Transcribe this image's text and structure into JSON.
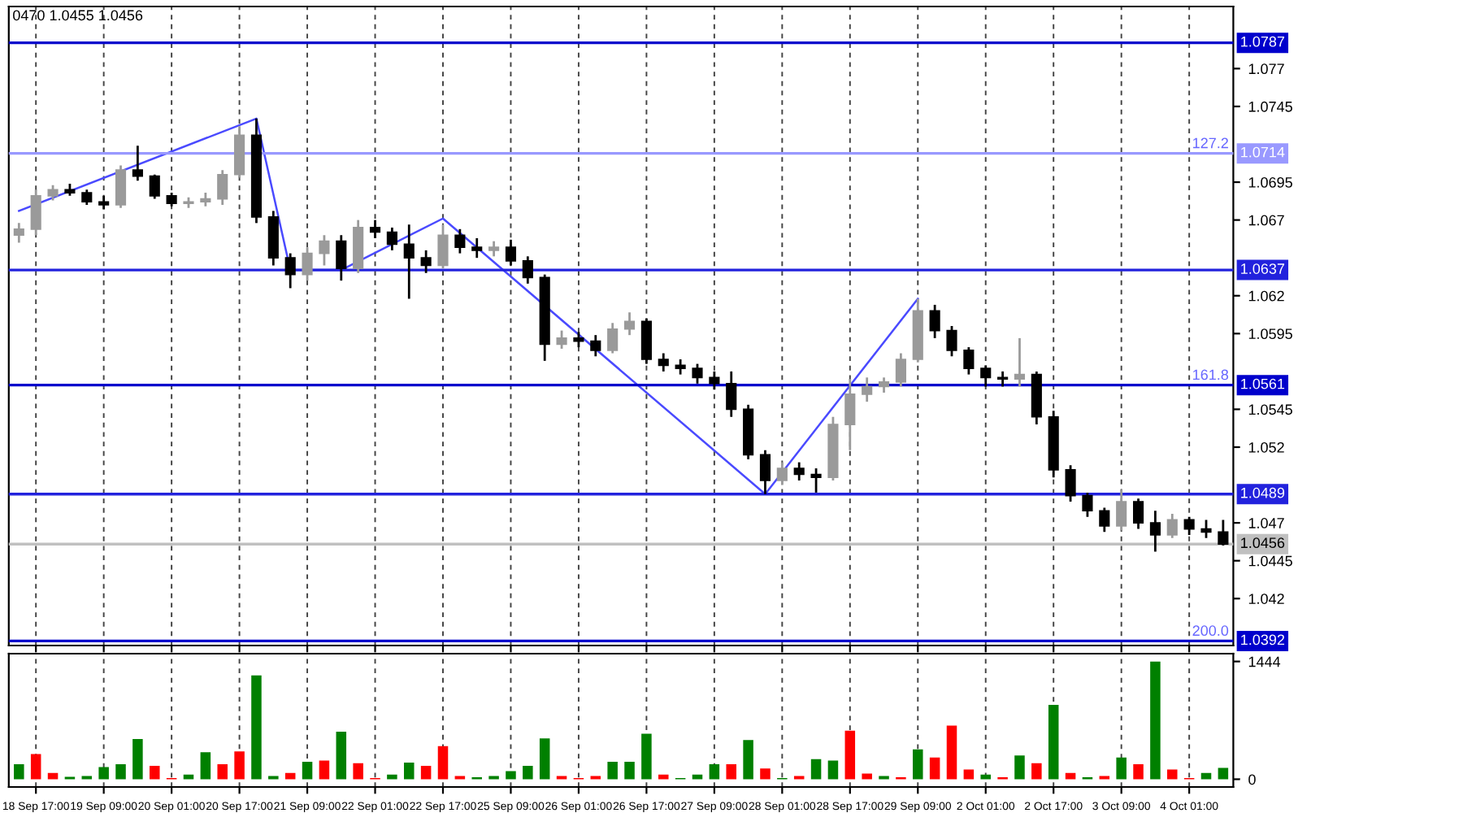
{
  "chart_data": [
    {
      "type": "candlestick",
      "ohlc": [
        [
          1.066,
          1.0668,
          1.0655,
          1.0664
        ],
        [
          1.0664,
          1.069,
          1.066,
          1.0686
        ],
        [
          1.0686,
          1.0693,
          1.0683,
          1.069
        ],
        [
          1.069,
          1.0694,
          1.0686,
          1.0688
        ],
        [
          1.0688,
          1.069,
          1.068,
          1.0682
        ],
        [
          1.0682,
          1.0686,
          1.0677,
          1.068
        ],
        [
          1.068,
          1.0706,
          1.0678,
          1.0703
        ],
        [
          1.0703,
          1.0719,
          1.0696,
          1.0699
        ],
        [
          1.0699,
          1.07,
          1.0684,
          1.0686
        ],
        [
          1.0686,
          1.0688,
          1.0679,
          1.0681
        ],
        [
          1.0681,
          1.0685,
          1.0678,
          1.0682
        ],
        [
          1.0682,
          1.0688,
          1.0679,
          1.0684
        ],
        [
          1.0684,
          1.0703,
          1.068,
          1.07
        ],
        [
          1.07,
          1.0732,
          1.0698,
          1.0726
        ],
        [
          1.0726,
          1.0737,
          1.0668,
          1.0672
        ],
        [
          1.0672,
          1.0676,
          1.064,
          1.0645
        ],
        [
          1.0645,
          1.0648,
          1.0625,
          1.0634
        ],
        [
          1.0634,
          1.0652,
          1.063,
          1.0648
        ],
        [
          1.0648,
          1.066,
          1.064,
          1.0656
        ],
        [
          1.0656,
          1.066,
          1.063,
          1.0638
        ],
        [
          1.0638,
          1.067,
          1.0635,
          1.0665
        ],
        [
          1.0665,
          1.067,
          1.0658,
          1.0662
        ],
        [
          1.0662,
          1.0665,
          1.065,
          1.0654
        ],
        [
          1.0654,
          1.0667,
          1.0618,
          1.0645
        ],
        [
          1.0645,
          1.065,
          1.0635,
          1.064
        ],
        [
          1.064,
          1.0667,
          1.0638,
          1.066
        ],
        [
          1.066,
          1.0664,
          1.0648,
          1.0652
        ],
        [
          1.0652,
          1.0658,
          1.0645,
          1.065
        ],
        [
          1.065,
          1.0656,
          1.0646,
          1.0652
        ],
        [
          1.0652,
          1.0657,
          1.064,
          1.0643
        ],
        [
          1.0643,
          1.0646,
          1.0628,
          1.0632
        ],
        [
          1.0632,
          1.0634,
          1.0577,
          1.0588
        ],
        [
          1.0588,
          1.0597,
          1.0585,
          1.0592
        ],
        [
          1.0592,
          1.0596,
          1.0586,
          1.059
        ],
        [
          1.059,
          1.0594,
          1.058,
          1.0584
        ],
        [
          1.0584,
          1.0602,
          1.0582,
          1.0598
        ],
        [
          1.0598,
          1.0609,
          1.0594,
          1.0603
        ],
        [
          1.0603,
          1.0605,
          1.0575,
          1.0578
        ],
        [
          1.0578,
          1.0582,
          1.057,
          1.0574
        ],
        [
          1.0574,
          1.0578,
          1.0568,
          1.0572
        ],
        [
          1.0572,
          1.0575,
          1.0562,
          1.0566
        ],
        [
          1.0566,
          1.057,
          1.0558,
          1.0562
        ],
        [
          1.0562,
          1.057,
          1.054,
          1.0545
        ],
        [
          1.0545,
          1.0548,
          1.0512,
          1.0515
        ],
        [
          1.0515,
          1.0518,
          1.0489,
          1.0498
        ],
        [
          1.0498,
          1.051,
          1.0495,
          1.0506
        ],
        [
          1.0506,
          1.051,
          1.0498,
          1.0502
        ],
        [
          1.0502,
          1.0506,
          1.049,
          1.05
        ],
        [
          1.05,
          1.054,
          1.0498,
          1.0535
        ],
        [
          1.0535,
          1.0565,
          1.0518,
          1.0555
        ],
        [
          1.0555,
          1.0566,
          1.055,
          1.056
        ],
        [
          1.056,
          1.0566,
          1.0556,
          1.0563
        ],
        [
          1.0563,
          1.0582,
          1.056,
          1.0578
        ],
        [
          1.0578,
          1.0618,
          1.0576,
          1.061
        ],
        [
          1.061,
          1.0614,
          1.0592,
          1.0597
        ],
        [
          1.0597,
          1.06,
          1.058,
          1.0584
        ],
        [
          1.0584,
          1.0586,
          1.0568,
          1.0572
        ],
        [
          1.0572,
          1.0574,
          1.056,
          1.0566
        ],
        [
          1.0566,
          1.057,
          1.056,
          1.0565
        ],
        [
          1.0565,
          1.0592,
          1.056,
          1.0568
        ],
        [
          1.0568,
          1.057,
          1.0535,
          1.054
        ],
        [
          1.054,
          1.0544,
          1.05,
          1.0505
        ],
        [
          1.0505,
          1.0508,
          1.0484,
          1.0488
        ],
        [
          1.0488,
          1.049,
          1.0474,
          1.0478
        ],
        [
          1.0478,
          1.048,
          1.0464,
          1.0468
        ],
        [
          1.0468,
          1.0492,
          1.0465,
          1.0484
        ],
        [
          1.0484,
          1.0486,
          1.0466,
          1.047
        ],
        [
          1.047,
          1.0478,
          1.0451,
          1.0462
        ],
        [
          1.0462,
          1.0476,
          1.046,
          1.0472
        ],
        [
          1.0472,
          1.0474,
          1.0462,
          1.0466
        ],
        [
          1.0466,
          1.0472,
          1.046,
          1.0464
        ],
        [
          1.0464,
          1.0472,
          1.0455,
          1.0456
        ]
      ],
      "colors": [
        "#9a9a9a",
        "#9a9a9a",
        "#9a9a9a",
        "#000000",
        "#000000",
        "#000000",
        "#9a9a9a",
        "#000000",
        "#000000",
        "#000000",
        "#9a9a9a",
        "#9a9a9a",
        "#9a9a9a",
        "#9a9a9a",
        "#000000",
        "#000000",
        "#000000",
        "#9a9a9a",
        "#9a9a9a",
        "#000000",
        "#9a9a9a",
        "#000000",
        "#000000",
        "#000000",
        "#000000",
        "#9a9a9a",
        "#000000",
        "#000000",
        "#9a9a9a",
        "#000000",
        "#000000",
        "#000000",
        "#9a9a9a",
        "#000000",
        "#000000",
        "#9a9a9a",
        "#9a9a9a",
        "#000000",
        "#000000",
        "#000000",
        "#000000",
        "#000000",
        "#000000",
        "#000000",
        "#000000",
        "#9a9a9a",
        "#000000",
        "#000000",
        "#9a9a9a",
        "#9a9a9a",
        "#9a9a9a",
        "#9a9a9a",
        "#9a9a9a",
        "#9a9a9a",
        "#000000",
        "#000000",
        "#000000",
        "#000000",
        "#000000",
        "#9a9a9a",
        "#000000",
        "#000000",
        "#000000",
        "#000000",
        "#000000",
        "#9a9a9a",
        "#000000",
        "#000000",
        "#9a9a9a",
        "#000000",
        "#000000",
        "#000000"
      ],
      "series": [
        {
          "type": "line",
          "color": "#4a4aff",
          "values": [
            1.0676,
            null,
            null,
            null,
            null,
            null,
            null,
            null,
            null,
            null,
            null,
            null,
            null,
            null,
            1.0737,
            null,
            1.0637,
            null,
            null,
            1.0637,
            null,
            null,
            null,
            null,
            null,
            1.0671,
            null,
            null,
            null,
            null,
            null,
            null,
            null,
            null,
            null,
            null,
            null,
            null,
            null,
            null,
            null,
            null,
            null,
            null,
            1.0489,
            null,
            null,
            null,
            null,
            null,
            null,
            null,
            null,
            1.0618,
            null,
            null,
            null,
            null,
            null,
            null,
            null,
            null,
            null,
            null,
            null,
            null,
            null,
            null,
            null,
            null,
            null,
            null
          ]
        }
      ],
      "ylim": [
        1.0389,
        1.0811
      ],
      "yticks": [
        1.077,
        1.0745,
        1.0695,
        1.067,
        1.062,
        1.0595,
        1.0545,
        1.052,
        1.047,
        1.0445,
        1.042
      ],
      "ref_lines": [
        {
          "axis": "y",
          "value": 1.0787,
          "label": "1.0787",
          "color": "#0000cc"
        },
        {
          "axis": "y",
          "value": 1.0714,
          "label": "1.0714",
          "color": "#9999ff"
        },
        {
          "axis": "y",
          "value": 1.0637,
          "label": "1.0637",
          "color": "#2222dd"
        },
        {
          "axis": "y",
          "value": 1.0561,
          "label": "1.0561",
          "color": "#0000cc"
        },
        {
          "axis": "y",
          "value": 1.0489,
          "label": "1.0489",
          "color": "#2222dd"
        },
        {
          "axis": "y",
          "value": 1.0456,
          "label": "1.0456",
          "color": "#c0c0c0"
        },
        {
          "axis": "y",
          "value": 1.0392,
          "label": "1.0392",
          "color": "#0000cc"
        }
      ],
      "annotations": [
        "0470 1.0455 1.0456",
        {
          "text": "127.2",
          "y": 1.0714
        },
        {
          "text": "161.8",
          "y": 1.0561
        },
        {
          "text": "200.0",
          "y": 1.0392
        }
      ],
      "grid": "x",
      "tick_labels": "y"
    },
    {
      "type": "bar",
      "categories": [
        null,
        "18 Sep 17:00",
        null,
        null,
        null,
        "19 Sep 09:00",
        null,
        null,
        null,
        "20 Sep 01:00",
        null,
        null,
        null,
        "20 Sep 17:00",
        null,
        null,
        null,
        "21 Sep 09:00",
        null,
        null,
        null,
        "22 Sep 01:00",
        null,
        null,
        null,
        "22 Sep 17:00",
        null,
        null,
        null,
        "25 Sep 09:00",
        null,
        null,
        null,
        "26 Sep 01:00",
        null,
        null,
        null,
        "26 Sep 17:00",
        null,
        null,
        null,
        "27 Sep 09:00",
        null,
        null,
        null,
        "28 Sep 01:00",
        null,
        null,
        null,
        "28 Sep 17:00",
        null,
        null,
        null,
        "29 Sep 09:00",
        null,
        null,
        null,
        "2 Oct 01:00",
        null,
        null,
        null,
        "2 Oct 17:00",
        null,
        null,
        null,
        "3 Oct 09:00",
        null,
        null,
        null,
        "4 Oct 01:00",
        null,
        null
      ],
      "values": [
        185,
        310,
        76,
        30,
        40,
        150,
        185,
        494,
        165,
        15,
        57,
        330,
        185,
        340,
        1273,
        40,
        76,
        215,
        228,
        583,
        196,
        15,
        57,
        203,
        165,
        405,
        40,
        25,
        40,
        100,
        165,
        500,
        40,
        15,
        40,
        215,
        215,
        557,
        57,
        15,
        57,
        185,
        185,
        480,
        133,
        15,
        40,
        247,
        228,
        595,
        70,
        40,
        25,
        367,
        266,
        658,
        120,
        57,
        25,
        291,
        196,
        912,
        76,
        25,
        40,
        266,
        185,
        1444,
        120,
        15,
        76,
        139
      ],
      "colors": [
        "#008000",
        "#ff0000",
        "#ff0000",
        "#008000",
        "#008000",
        "#008000",
        "#008000",
        "#008000",
        "#ff0000",
        "#ff0000",
        "#008000",
        "#008000",
        "#ff0000",
        "#ff0000",
        "#008000",
        "#008000",
        "#ff0000",
        "#008000",
        "#ff0000",
        "#008000",
        "#ff0000",
        "#ff0000",
        "#008000",
        "#008000",
        "#ff0000",
        "#ff0000",
        "#ff0000",
        "#008000",
        "#008000",
        "#008000",
        "#008000",
        "#008000",
        "#ff0000",
        "#ff0000",
        "#ff0000",
        "#008000",
        "#008000",
        "#008000",
        "#ff0000",
        "#008000",
        "#008000",
        "#008000",
        "#ff0000",
        "#008000",
        "#ff0000",
        "#008000",
        "#ff0000",
        "#008000",
        "#008000",
        "#ff0000",
        "#ff0000",
        "#008000",
        "#ff0000",
        "#008000",
        "#ff0000",
        "#ff0000",
        "#ff0000",
        "#008000",
        "#ff0000",
        "#008000",
        "#ff0000",
        "#008000",
        "#ff0000",
        "#008000",
        "#ff0000",
        "#008000",
        "#ff0000",
        "#008000",
        "#ff0000",
        "#ff0000",
        "#008000",
        "#008000"
      ],
      "ylim": [
        -95,
        1540
      ],
      "yticks": [
        0,
        1444
      ],
      "grid": "x"
    }
  ]
}
